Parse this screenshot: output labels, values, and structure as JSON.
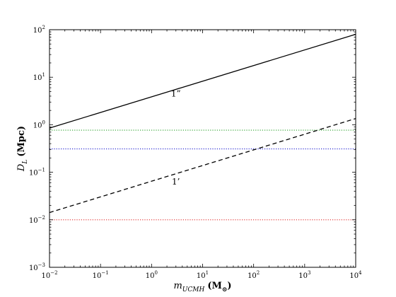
{
  "chart_data": {
    "type": "line",
    "xscale": "log",
    "yscale": "log",
    "xlim": [
      0.01,
      10000
    ],
    "ylim": [
      0.001,
      100
    ],
    "xlabel": {
      "var": "m",
      "sub": "UCMH",
      "unit": "(M",
      "unit_sub": "⊙",
      "unit_close": ")"
    },
    "ylabel": {
      "var": "D",
      "sub": "L",
      "unit": "(Mpc)"
    },
    "x_ticks": [
      {
        "value": 0.01,
        "base": "10",
        "exp": "−2"
      },
      {
        "value": 0.1,
        "base": "10",
        "exp": "−1"
      },
      {
        "value": 1,
        "base": "10",
        "exp": "0"
      },
      {
        "value": 10,
        "base": "10",
        "exp": "1"
      },
      {
        "value": 100,
        "base": "10",
        "exp": "2"
      },
      {
        "value": 1000,
        "base": "10",
        "exp": "3"
      },
      {
        "value": 10000,
        "base": "10",
        "exp": "4"
      }
    ],
    "y_ticks": [
      {
        "value": 0.001,
        "base": "10",
        "exp": "−3"
      },
      {
        "value": 0.01,
        "base": "10",
        "exp": "−2"
      },
      {
        "value": 0.1,
        "base": "10",
        "exp": "−1"
      },
      {
        "value": 1,
        "base": "10",
        "exp": "0"
      },
      {
        "value": 10,
        "base": "10",
        "exp": "1"
      },
      {
        "value": 100,
        "base": "10",
        "exp": "2"
      }
    ],
    "series": [
      {
        "label": "1”",
        "style": "solid",
        "color": "#000000",
        "x": [
          0.01,
          10000
        ],
        "y": [
          0.85,
          80
        ],
        "label_at": [
          3,
          3.9
        ]
      },
      {
        "label": "1’",
        "style": "dashed",
        "color": "#000000",
        "x": [
          0.01,
          10000
        ],
        "y": [
          0.0142,
          1.35
        ],
        "label_at": [
          3,
          0.055
        ]
      }
    ],
    "hlines": [
      {
        "y": 0.77,
        "color": "#2ca02c",
        "style": "dotted"
      },
      {
        "y": 0.31,
        "color": "#1f1fd0",
        "style": "dotted"
      },
      {
        "y": 0.01,
        "color": "#e03030",
        "style": "dotted"
      }
    ],
    "grid": false
  }
}
